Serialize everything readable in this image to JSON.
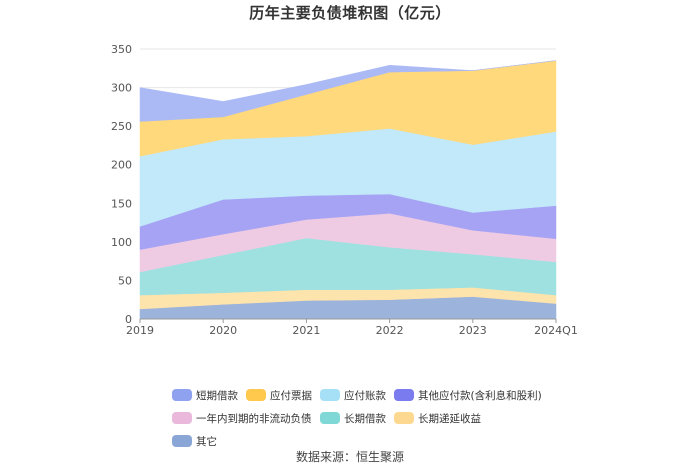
{
  "title": "历年主要负债堆积图（亿元）",
  "source": "数据来源：恒生聚源",
  "chart_data": {
    "type": "area",
    "stacked": true,
    "title": "历年主要负债堆积图（亿元）",
    "xlabel": "",
    "ylabel": "",
    "ylim": [
      0,
      350
    ],
    "yticks": [
      0,
      50,
      100,
      150,
      200,
      250,
      300,
      350
    ],
    "grid": true,
    "legend_position": "bottom",
    "categories": [
      "2019",
      "2020",
      "2021",
      "2022",
      "2023",
      "2024Q1"
    ],
    "series": [
      {
        "name": "其它",
        "color": "#9cb3dc",
        "values": [
          13,
          19,
          24,
          25,
          29,
          20
        ]
      },
      {
        "name": "长期递延收益",
        "color": "#fde3ac",
        "values": [
          18,
          15,
          14,
          13,
          12,
          11
        ]
      },
      {
        "name": "长期借款",
        "color": "#9fe1e0",
        "values": [
          30,
          49,
          67,
          55,
          43,
          43
        ]
      },
      {
        "name": "一年内到期的非流动负债",
        "color": "#efcbe3",
        "values": [
          29,
          27,
          24,
          44,
          31,
          30
        ]
      },
      {
        "name": "其他应付款(含利息和股利)",
        "color": "#a6a3f5",
        "values": [
          30,
          45,
          31,
          25,
          23,
          43
        ]
      },
      {
        "name": "应付账款",
        "color": "#c1e9f9",
        "values": [
          91,
          78,
          77,
          85,
          88,
          96
        ]
      },
      {
        "name": "应付票据",
        "color": "#ffd97c",
        "values": [
          45,
          29,
          54,
          73,
          96,
          92
        ]
      },
      {
        "name": "短期借款",
        "color": "#abbaf5",
        "values": [
          44,
          20,
          13,
          9,
          0,
          0
        ]
      }
    ]
  },
  "legend": [
    {
      "label": "短期借款",
      "color": "#8ea2f0"
    },
    {
      "label": "应付票据",
      "color": "#ffc94d"
    },
    {
      "label": "应付账款",
      "color": "#a6e0f7"
    },
    {
      "label": "其他应付款(含利息和股利)",
      "color": "#7b7bf0"
    },
    {
      "label": "一年内到期的非流动负债",
      "color": "#e9b8da"
    },
    {
      "label": "长期借款",
      "color": "#7fd8d6"
    },
    {
      "label": "长期递延收益",
      "color": "#fdd891"
    },
    {
      "label": "其它",
      "color": "#8aa6d6"
    }
  ]
}
